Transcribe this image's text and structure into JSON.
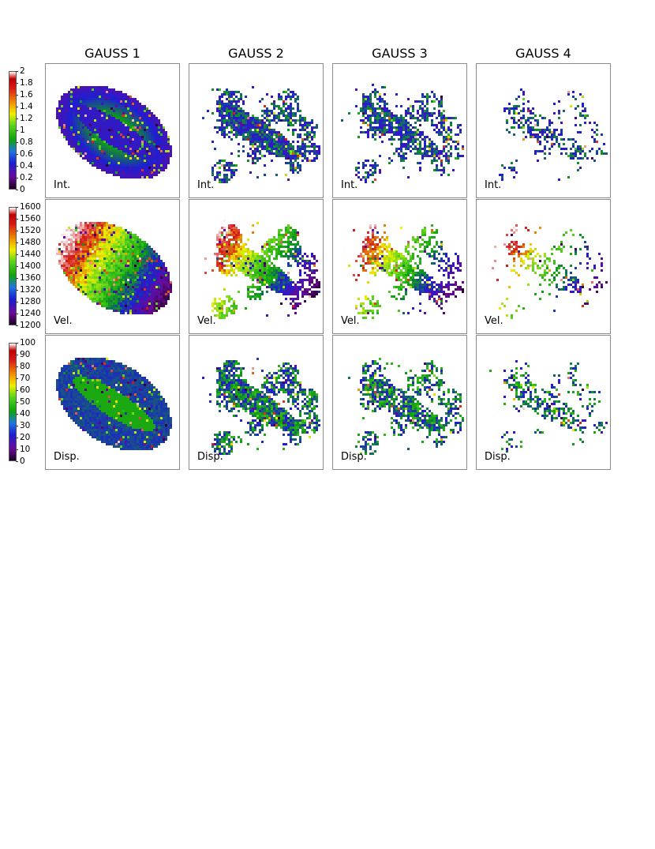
{
  "columns": [
    "GAUSS 1",
    "GAUSS 2",
    "GAUSS 3",
    "GAUSS 4"
  ],
  "rows": [
    "Int.",
    "Vel.",
    "Disp."
  ],
  "chart_data": {
    "type": "heatmap",
    "columns": [
      "GAUSS 1",
      "GAUSS 2",
      "GAUSS 3",
      "GAUSS 4"
    ],
    "rows": [
      {
        "name": "Int.",
        "colorbar": {
          "min": 0,
          "max": 2,
          "ticks": [
            "2",
            "1.8",
            "1.6",
            "1.4",
            "1.2",
            "1",
            "0.8",
            "0.6",
            "0.4",
            "0.2",
            "0"
          ]
        }
      },
      {
        "name": "Vel.",
        "colorbar": {
          "min": 1200,
          "max": 1600,
          "ticks": [
            "1600",
            "1560",
            "1520",
            "1480",
            "1440",
            "1400",
            "1360",
            "1320",
            "1280",
            "1240",
            "1200"
          ]
        }
      },
      {
        "name": "Disp.",
        "colorbar": {
          "min": 0,
          "max": 100,
          "ticks": [
            "100",
            "90",
            "80",
            "70",
            "60",
            "50",
            "40",
            "30",
            "20",
            "10",
            "0"
          ]
        }
      }
    ],
    "colormap": [
      "#2a0030",
      "#6a0a9a",
      "#1e1ed2",
      "#1e78dc",
      "#0fa20f",
      "#5ad21e",
      "#f0f000",
      "#f0a000",
      "#d21414",
      "#b00000",
      "#ffffff"
    ]
  }
}
